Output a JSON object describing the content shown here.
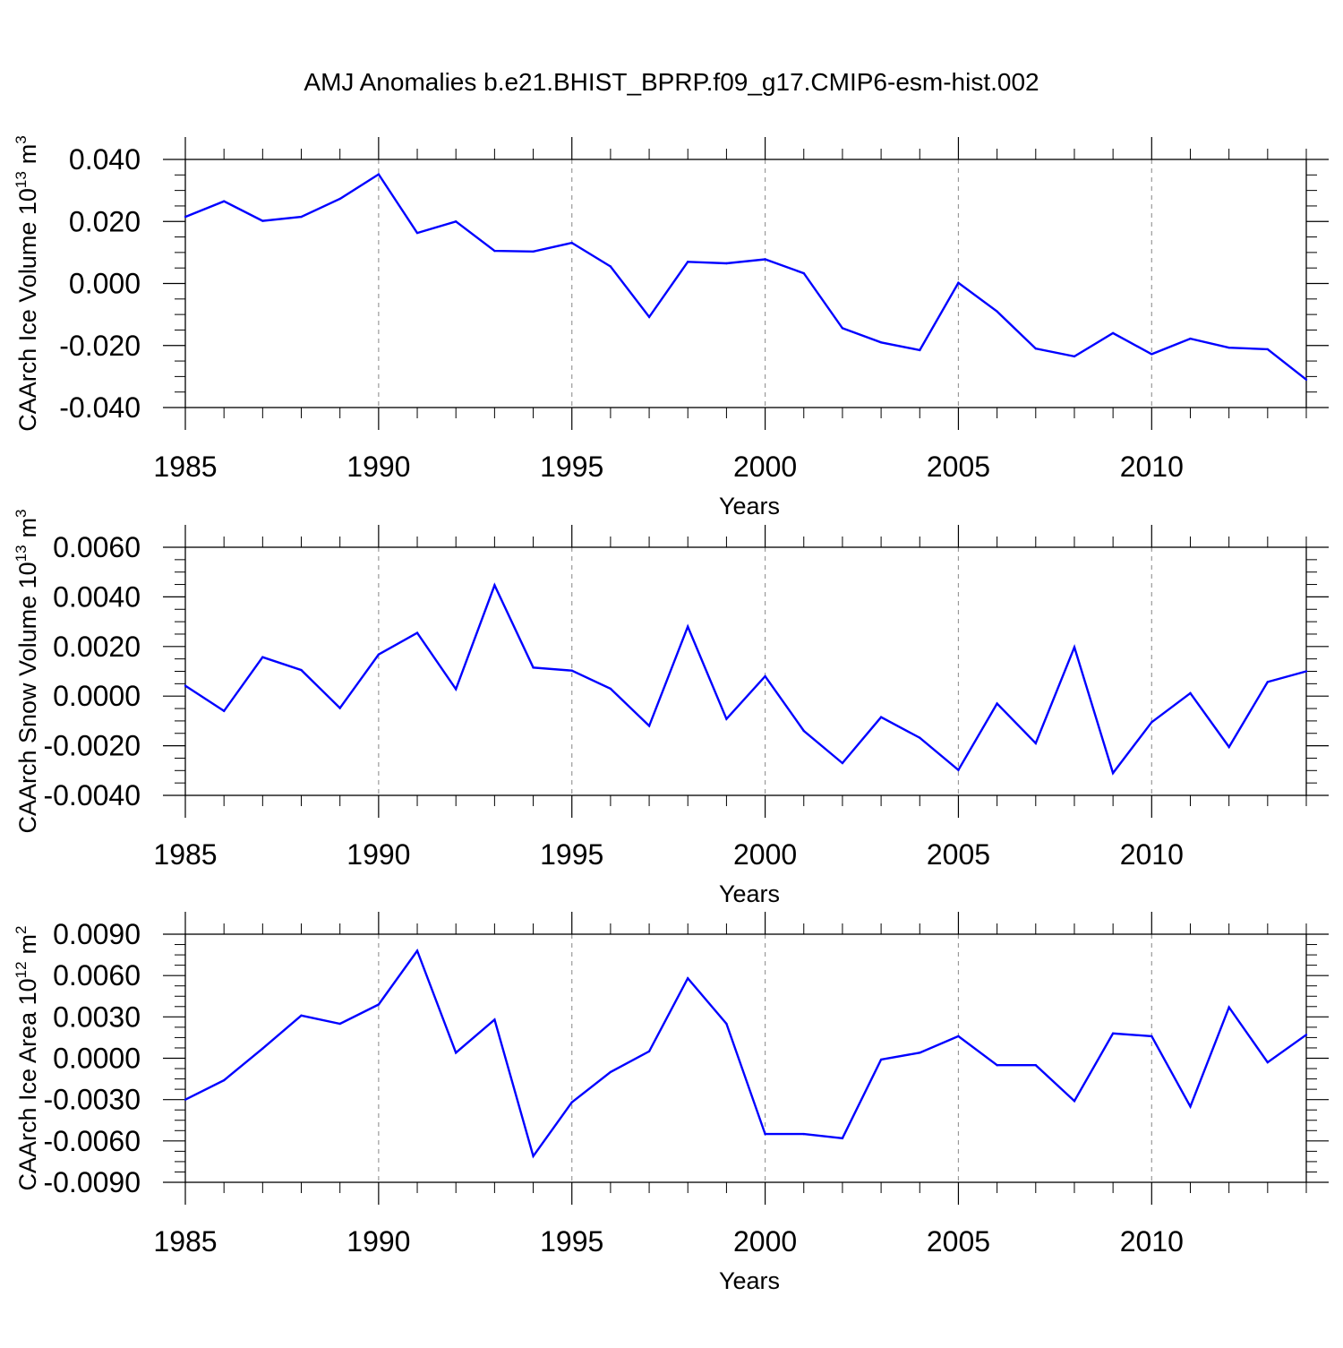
{
  "figure": {
    "title": "AMJ Anomalies b.e21.BHIST_BPRP.f09_g17.CMIP6-esm-hist.002",
    "line_color": "#0000ff",
    "axis_color": "#000000",
    "grid_color": "#999999"
  },
  "chart_data": [
    {
      "type": "line",
      "title": "",
      "xlabel": "Years",
      "ylabel_main": "CAArch Ice Volume 10",
      "ylabel_exp": "13",
      "ylabel_unit": "m",
      "ylabel_unit_exp": "3",
      "xlim": [
        1985,
        2014
      ],
      "ylim": [
        -0.04,
        0.04
      ],
      "x_ticks": [
        1985,
        1990,
        1995,
        2000,
        2005,
        2010
      ],
      "x_tick_labels": [
        "1985",
        "1990",
        "1995",
        "2000",
        "2005",
        "2010"
      ],
      "y_ticks": [
        -0.04,
        -0.02,
        0.0,
        0.02,
        0.04
      ],
      "y_tick_labels": [
        "-0.040",
        "-0.020",
        "0.000",
        "0.020",
        "0.040"
      ],
      "y_minor_step": 0.005,
      "grid_x": [
        1990,
        1995,
        2000,
        2005,
        2010
      ],
      "series": [
        {
          "name": "CAArch Ice Volume",
          "x": [
            1985,
            1986,
            1987,
            1988,
            1989,
            1990,
            1991,
            1992,
            1993,
            1994,
            1995,
            1996,
            1997,
            1998,
            1999,
            2000,
            2001,
            2002,
            2003,
            2004,
            2005,
            2006,
            2007,
            2008,
            2009,
            2010,
            2011,
            2012,
            2013,
            2014
          ],
          "values": [
            0.0215,
            0.0265,
            0.0202,
            0.0215,
            0.0273,
            0.0352,
            0.0163,
            0.02,
            0.0105,
            0.0103,
            0.0131,
            0.0055,
            -0.0108,
            0.007,
            0.0065,
            0.0078,
            0.0033,
            -0.0144,
            -0.019,
            -0.0215,
            0.0002,
            -0.009,
            -0.021,
            -0.0235,
            -0.016,
            -0.0228,
            -0.0178,
            -0.0207,
            -0.0212,
            -0.031
          ]
        }
      ]
    },
    {
      "type": "line",
      "title": "",
      "xlabel": "Years",
      "ylabel_main": "CAArch Snow Volume 10",
      "ylabel_exp": "13",
      "ylabel_unit": "m",
      "ylabel_unit_exp": "3",
      "xlim": [
        1985,
        2014
      ],
      "ylim": [
        -0.004,
        0.006
      ],
      "x_ticks": [
        1985,
        1990,
        1995,
        2000,
        2005,
        2010
      ],
      "x_tick_labels": [
        "1985",
        "1990",
        "1995",
        "2000",
        "2005",
        "2010"
      ],
      "y_ticks": [
        -0.004,
        -0.002,
        0.0,
        0.002,
        0.004,
        0.006
      ],
      "y_tick_labels": [
        "-0.0040",
        "-0.0020",
        "0.0000",
        "0.0020",
        "0.0040",
        "0.0060"
      ],
      "y_minor_step": 0.0005,
      "grid_x": [
        1990,
        1995,
        2000,
        2005,
        2010
      ],
      "series": [
        {
          "name": "CAArch Snow Volume",
          "x": [
            1985,
            1986,
            1987,
            1988,
            1989,
            1990,
            1991,
            1992,
            1993,
            1994,
            1995,
            1996,
            1997,
            1998,
            1999,
            2000,
            2001,
            2002,
            2003,
            2004,
            2005,
            2006,
            2007,
            2008,
            2009,
            2010,
            2011,
            2012,
            2013,
            2014
          ],
          "values": [
            0.00042,
            -0.0006,
            0.00157,
            0.00105,
            -0.00048,
            0.00168,
            0.00255,
            0.00028,
            0.00447,
            0.00115,
            0.00103,
            0.0003,
            -0.0012,
            0.0028,
            -0.00092,
            0.0008,
            -0.0014,
            -0.0027,
            -0.00085,
            -0.00168,
            -0.00298,
            -0.0003,
            -0.0019,
            0.00197,
            -0.0031,
            -0.00105,
            0.00012,
            -0.00205,
            0.00057,
            0.001
          ]
        }
      ]
    },
    {
      "type": "line",
      "title": "",
      "xlabel": "Years",
      "ylabel_main": "CAArch Ice Area 10",
      "ylabel_exp": "12",
      "ylabel_unit": "m",
      "ylabel_unit_exp": "2",
      "xlim": [
        1985,
        2014
      ],
      "ylim": [
        -0.009,
        0.009
      ],
      "x_ticks": [
        1985,
        1990,
        1995,
        2000,
        2005,
        2010
      ],
      "x_tick_labels": [
        "1985",
        "1990",
        "1995",
        "2000",
        "2005",
        "2010"
      ],
      "y_ticks": [
        -0.009,
        -0.006,
        -0.003,
        0.0,
        0.003,
        0.006,
        0.009
      ],
      "y_tick_labels": [
        "-0.0090",
        "-0.0060",
        "-0.0030",
        "0.0000",
        "0.0030",
        "0.0060",
        "0.0090"
      ],
      "y_minor_step": 0.00075,
      "grid_x": [
        1990,
        1995,
        2000,
        2005,
        2010
      ],
      "series": [
        {
          "name": "CAArch Ice Area",
          "x": [
            1985,
            1986,
            1987,
            1988,
            1989,
            1990,
            1991,
            1992,
            1993,
            1994,
            1995,
            1996,
            1997,
            1998,
            1999,
            2000,
            2001,
            2002,
            2003,
            2004,
            2005,
            2006,
            2007,
            2008,
            2009,
            2010,
            2011,
            2012,
            2013,
            2014
          ],
          "values": [
            -0.003,
            -0.0016,
            0.0007,
            0.0031,
            0.0025,
            0.0039,
            0.0078,
            0.0004,
            0.0028,
            -0.0071,
            -0.0032,
            -0.001,
            0.0005,
            0.0058,
            0.0025,
            -0.0055,
            -0.0055,
            -0.0058,
            -0.0001,
            0.0004,
            0.0016,
            -0.0005,
            -0.0005,
            -0.0031,
            0.0018,
            0.0016,
            -0.0035,
            0.0037,
            -0.0003,
            0.0017
          ]
        }
      ]
    }
  ]
}
